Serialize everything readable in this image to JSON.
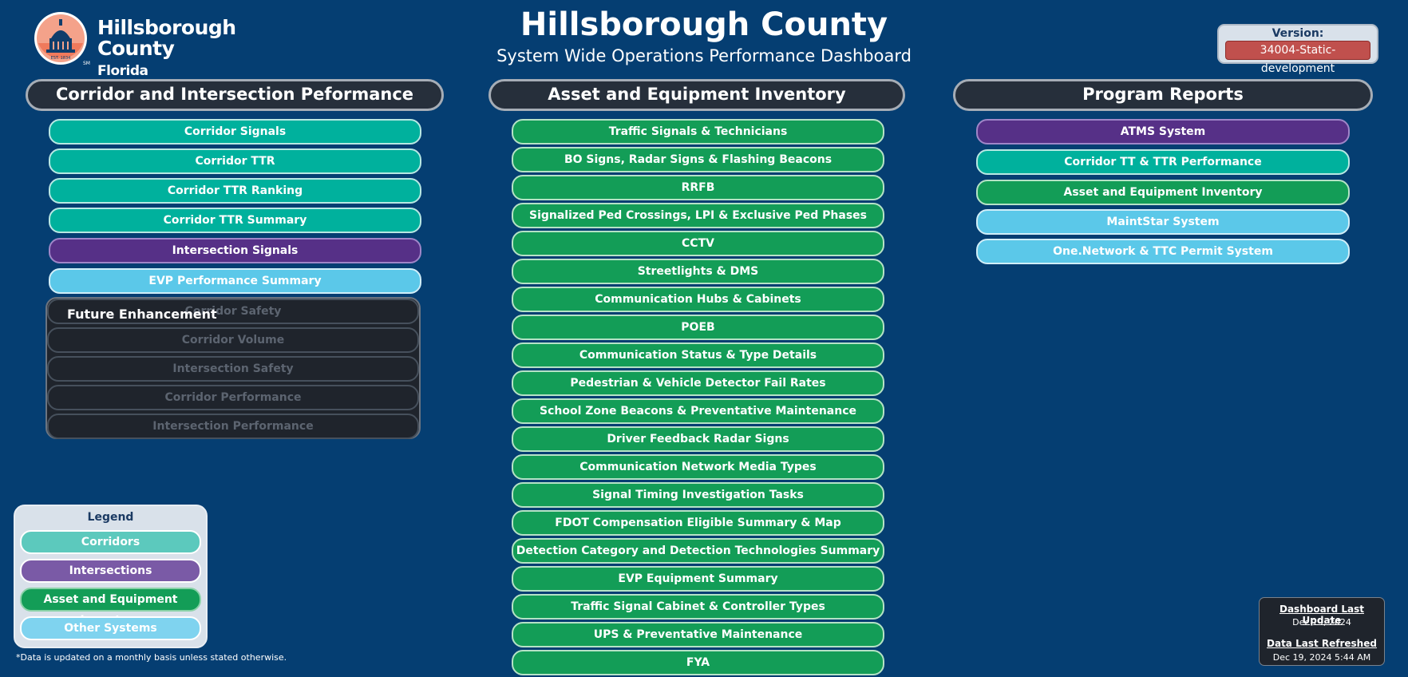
{
  "header": {
    "logo": {
      "line1": "Hillsborough",
      "line2": "County",
      "line3": "Florida",
      "est": "EST. 1834",
      "sm": "SM"
    },
    "title": "Hillsborough County",
    "subtitle": "System Wide Operations Performance Dashboard",
    "version_label": "Version:",
    "version_value": "34004-Static-development"
  },
  "sections": {
    "corridor": {
      "title": "Corridor and Intersection Peformance",
      "items": [
        {
          "label": "Corridor Signals",
          "style": "teal"
        },
        {
          "label": "Corridor TTR",
          "style": "teal"
        },
        {
          "label": "Corridor TTR Ranking",
          "style": "teal"
        },
        {
          "label": "Corridor TTR Summary",
          "style": "teal"
        },
        {
          "label": "Intersection Signals",
          "style": "purple"
        },
        {
          "label": "EVP Performance Summary",
          "style": "sky"
        }
      ],
      "future_label": "Future Enhancement",
      "future_items": [
        "Corridor Safety",
        "Corridor Volume",
        "Intersection Safety",
        "Corridor Performance",
        "Intersection Performance"
      ]
    },
    "asset": {
      "title": "Asset and Equipment Inventory",
      "items": [
        "Traffic Signals & Technicians",
        "BO Signs, Radar Signs & Flashing Beacons",
        "RRFB",
        "Signalized Ped Crossings, LPI & Exclusive Ped Phases",
        "CCTV",
        "Streetlights & DMS",
        "Communication Hubs & Cabinets",
        "POEB",
        "Communication Status & Type Details",
        "Pedestrian & Vehicle Detector Fail Rates",
        "School Zone Beacons & Preventative Maintenance",
        "Driver Feedback Radar Signs",
        "Communication Network Media Types",
        "Signal Timing Investigation Tasks",
        "FDOT Compensation Eligible Summary & Map",
        "Detection Category and Detection Technologies Summary",
        "EVP Equipment Summary",
        "Traffic Signal Cabinet & Controller Types",
        "UPS & Preventative Maintenance",
        "FYA"
      ]
    },
    "program": {
      "title": "Program Reports",
      "items": [
        {
          "label": "ATMS System",
          "style": "purple"
        },
        {
          "label": "Corridor TT & TTR Performance",
          "style": "teal"
        },
        {
          "label": "Asset and Equipment Inventory",
          "style": "green"
        },
        {
          "label": "MaintStar System",
          "style": "sky"
        },
        {
          "label": "One.Network & TTC Permit System",
          "style": "sky"
        }
      ]
    }
  },
  "legend": {
    "title": "Legend",
    "items": [
      {
        "label": "Corridors",
        "style": "lg-teal"
      },
      {
        "label": "Intersections",
        "style": "lg-purple"
      },
      {
        "label": "Asset and Equipment Inventory",
        "style": "lg-green"
      },
      {
        "label": "Other Systems",
        "style": "lg-sky"
      }
    ]
  },
  "footnote": "*Data is updated on a monthly basis unless stated otherwise.",
  "update": {
    "dashboard_label": "Dashboard Last Update",
    "dashboard_value": "Dec 19, 2024",
    "refresh_label": "Data Last Refreshed",
    "refresh_value": "Dec 19, 2024 5:44 AM"
  },
  "colors": {
    "background": "#053e72",
    "corridor_teal": "#00b19d",
    "intersection_purple": "#563087",
    "asset_green": "#139d57",
    "other_sky": "#5bc8e9"
  }
}
